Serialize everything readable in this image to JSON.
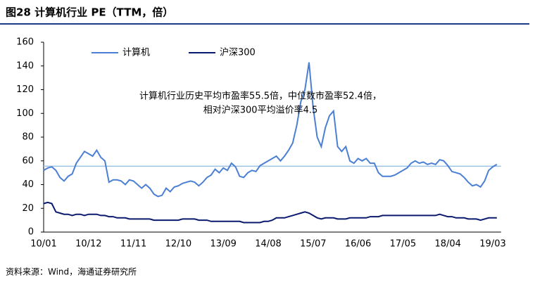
{
  "chart_data": {
    "type": "line",
    "title": "图28 计算机行业 PE（TTM，倍）",
    "source": "资料来源：Wind，海通证券研究所",
    "annotation": [
      "计算机行业历史平均市盈率55.5倍，中位数市盈率52.4倍，",
      "相对沪深300平均溢价率4.5"
    ],
    "reference_line": {
      "value": 55.5,
      "color": "#9cc3e6"
    },
    "legend": "upper left",
    "grid": false,
    "ylim": [
      0,
      160
    ],
    "yticks": [
      0,
      20,
      40,
      60,
      80,
      100,
      120,
      140,
      160
    ],
    "categories": [
      "10/01",
      null,
      null,
      null,
      null,
      null,
      null,
      null,
      null,
      null,
      null,
      "10/12",
      null,
      null,
      null,
      null,
      null,
      null,
      null,
      null,
      null,
      null,
      "11/11",
      null,
      null,
      null,
      null,
      null,
      null,
      null,
      null,
      null,
      null,
      "12/10",
      null,
      null,
      null,
      null,
      null,
      null,
      null,
      null,
      null,
      null,
      "13/09",
      null,
      null,
      null,
      null,
      null,
      null,
      null,
      null,
      null,
      null,
      "14/08",
      null,
      null,
      null,
      null,
      null,
      null,
      null,
      null,
      null,
      null,
      "15/07",
      null,
      null,
      null,
      null,
      null,
      null,
      null,
      null,
      null,
      null,
      "16/06",
      null,
      null,
      null,
      null,
      null,
      null,
      null,
      null,
      null,
      null,
      "17/05",
      null,
      null,
      null,
      null,
      null,
      null,
      null,
      null,
      null,
      null,
      "18/04",
      null,
      null,
      null,
      null,
      null,
      null,
      null,
      null,
      null,
      null,
      "19/03",
      null
    ],
    "series": [
      {
        "name": "计算机",
        "color": "#4a7fd4",
        "values": [
          52,
          54,
          55,
          52,
          46,
          43,
          47,
          49,
          58,
          63,
          68,
          66,
          64,
          69,
          63,
          60,
          42,
          44,
          44,
          43,
          40,
          44,
          43,
          40,
          37,
          40,
          37,
          32,
          30,
          31,
          37,
          34,
          38,
          39,
          41,
          42,
          43,
          42,
          39,
          42,
          46,
          48,
          53,
          50,
          54,
          52,
          58,
          55,
          47,
          46,
          50,
          52,
          51,
          56,
          58,
          60,
          62,
          64,
          60,
          64,
          69,
          75,
          90,
          110,
          120,
          143,
          105,
          80,
          72,
          88,
          98,
          102,
          72,
          68,
          72,
          60,
          58,
          62,
          60,
          62,
          58,
          58,
          50,
          47,
          47,
          47,
          48,
          50,
          52,
          54,
          58,
          60,
          58,
          59,
          57,
          58,
          57,
          61,
          60,
          56,
          51,
          50,
          49,
          46,
          42,
          39,
          40,
          38,
          43,
          52,
          55,
          57
        ]
      },
      {
        "name": "沪深300",
        "color": "#0a1a6e",
        "values": [
          24,
          25,
          24,
          17,
          16,
          15,
          15,
          14,
          15,
          15,
          14,
          15,
          15,
          15,
          14,
          14,
          13,
          13,
          12,
          12,
          12,
          11,
          11,
          11,
          11,
          11,
          11,
          10,
          10,
          10,
          10,
          10,
          10,
          10,
          11,
          11,
          11,
          11,
          10,
          10,
          10,
          9,
          9,
          9,
          9,
          9,
          9,
          9,
          9,
          8,
          8,
          8,
          8,
          8,
          9,
          9,
          10,
          12,
          12,
          12,
          13,
          14,
          15,
          16,
          17,
          16,
          14,
          12,
          11,
          12,
          12,
          12,
          11,
          11,
          11,
          12,
          12,
          12,
          12,
          12,
          13,
          13,
          13,
          14,
          14,
          14,
          14,
          14,
          14,
          14,
          14,
          14,
          14,
          14,
          14,
          14,
          14,
          15,
          14,
          13,
          13,
          12,
          12,
          12,
          11,
          11,
          11,
          10,
          11,
          12,
          12,
          12
        ]
      }
    ]
  }
}
